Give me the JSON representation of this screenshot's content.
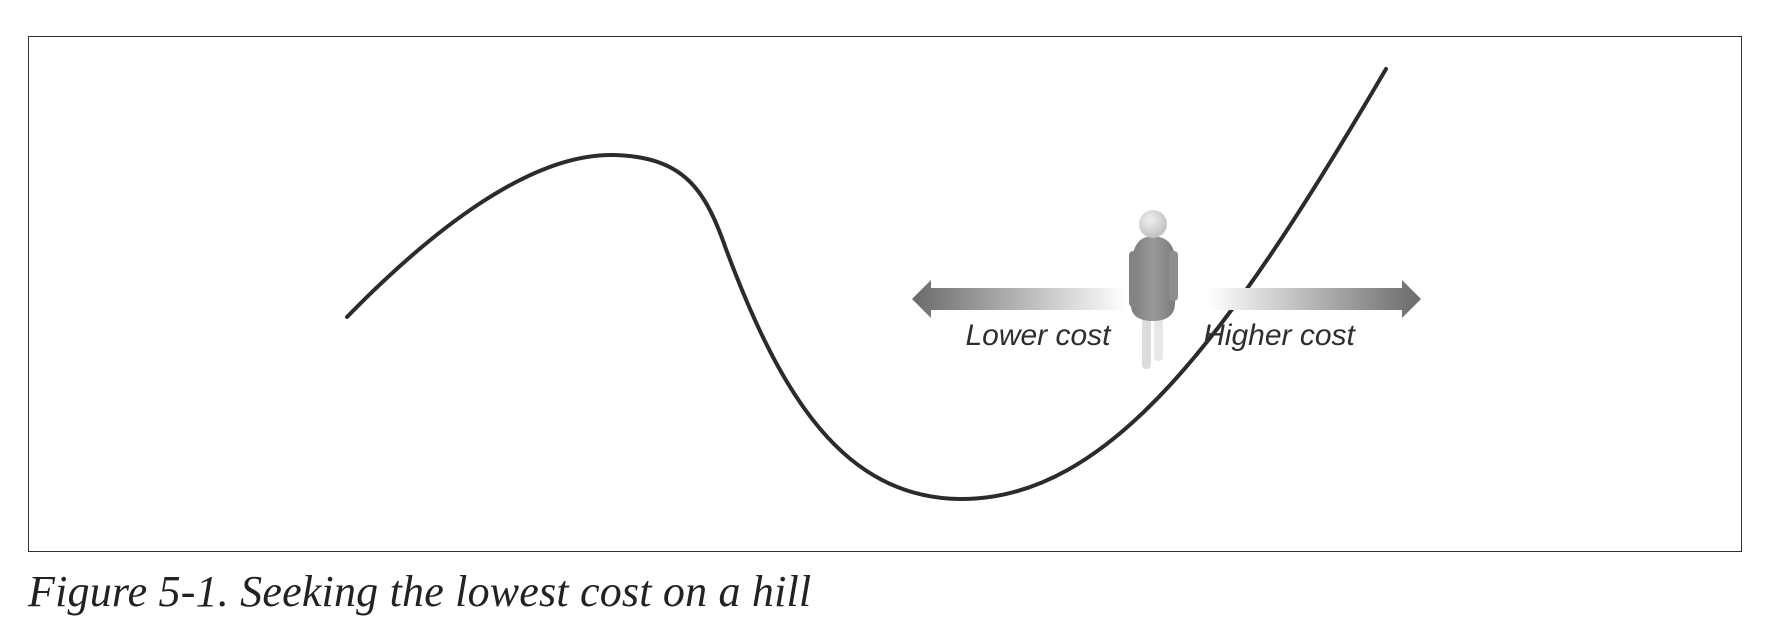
{
  "diagram": {
    "labels": {
      "left_arrow": "Lower cost",
      "right_arrow": "Higher cost"
    },
    "icons": {
      "person": "person-icon",
      "arrow": "double-headed-arrow-icon"
    },
    "colors": {
      "curve": "#2b2b2b",
      "arrow_dark": "#6e6e6e",
      "arrow_light": "#ffffff",
      "person_body": "#8a8a8a",
      "person_head": "#d3d3d3",
      "frame": "#333333"
    }
  },
  "caption": {
    "text": "Figure 5-1. Seeking the lowest cost on a hill"
  }
}
